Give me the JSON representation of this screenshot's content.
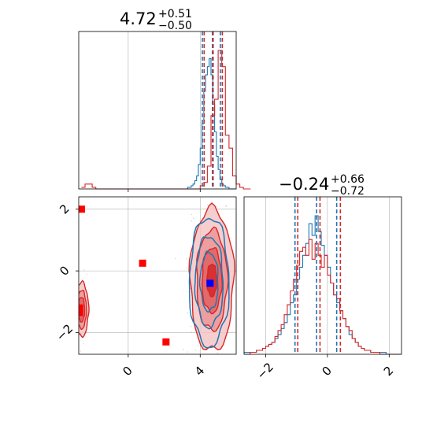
{
  "colors": {
    "blue": "#1f77b4",
    "red": "#d62728",
    "marker_blue": "#0000ff",
    "marker_red": "#ff0000",
    "grid": "#b0b0b0"
  },
  "chart_data": [
    {
      "type": "histogram",
      "panel": "top-left",
      "title": {
        "main": "4.72",
        "sup": "+0.51",
        "sub": "−0.50"
      },
      "xlim": [
        -2.75,
        6.0
      ],
      "grid": true,
      "quantiles": {
        "blue": [
          4.12,
          4.68,
          5.12
        ],
        "red": [
          4.22,
          4.72,
          5.23
        ]
      },
      "series": [
        {
          "color": "blue",
          "bins_from": 3.0,
          "bin_width": 0.1,
          "counts": [
            0,
            0,
            0,
            1,
            1,
            2,
            3,
            5,
            8,
            15,
            25,
            40,
            60,
            70,
            75,
            80,
            70,
            52,
            35,
            20,
            12,
            6,
            3,
            2,
            1,
            1,
            0,
            0,
            0,
            0
          ]
        },
        {
          "color": "red",
          "bins_from": -2.6,
          "bin_width": 0.2,
          "counts": [
            1,
            3,
            3,
            1,
            0,
            0,
            0,
            0,
            0,
            0,
            0,
            0,
            0,
            0,
            0,
            0,
            0,
            0,
            0,
            0,
            0,
            0,
            0,
            0,
            0,
            0,
            0,
            0,
            0,
            0,
            0,
            0,
            0,
            2,
            4,
            14,
            45,
            55,
            85,
            75,
            33,
            25,
            8,
            3,
            1,
            0,
            0
          ]
        }
      ]
    },
    {
      "type": "contour",
      "panel": "bottom-left",
      "xlim": [
        -2.75,
        6.0
      ],
      "ylim": [
        -2.7,
        2.4
      ],
      "xticks": [
        0,
        4
      ],
      "yticks": [
        -2,
        0,
        2
      ],
      "xtick_labels": [
        "0",
        "4"
      ],
      "ytick_labels": [
        "−2",
        "0",
        "2"
      ],
      "grid": true,
      "red_markers": [
        {
          "x": -2.6,
          "y": 2.0
        },
        {
          "x": 0.8,
          "y": 0.25
        },
        {
          "x": 2.1,
          "y": -2.3
        },
        {
          "x": -2.7,
          "y": -1.2
        },
        {
          "x": -2.7,
          "y": -1.35
        }
      ],
      "blue_markers": [
        {
          "x": 4.55,
          "y": -0.4
        }
      ],
      "red_clusters": [
        {
          "cx": 4.65,
          "cy": -0.3,
          "sx": 0.55,
          "sy": 1.05
        },
        {
          "cx": -2.6,
          "cy": -1.25,
          "sx": 0.18,
          "sy": 0.4
        }
      ],
      "blue_clusters": [
        {
          "cx": 4.5,
          "cy": -0.35,
          "sx": 0.5,
          "sy": 0.95
        }
      ]
    },
    {
      "type": "histogram",
      "panel": "bottom-right",
      "title": {
        "main": "−0.24",
        "sup": "+0.66",
        "sub": "−0.72"
      },
      "xlim": [
        -2.7,
        2.4
      ],
      "xticks": [
        -2,
        0,
        2
      ],
      "xtick_labels": [
        "−2",
        "0",
        "2"
      ],
      "grid": true,
      "quantiles": {
        "blue": [
          -1.05,
          -0.35,
          0.3
        ],
        "red": [
          -0.96,
          -0.24,
          0.42
        ]
      },
      "series": [
        {
          "color": "blue",
          "bins_from": -2.7,
          "bin_width": 0.1,
          "counts": [
            1,
            1,
            1,
            1,
            2,
            2,
            3,
            4,
            5,
            6,
            8,
            10,
            13,
            16,
            20,
            26,
            30,
            38,
            44,
            50,
            56,
            66,
            60,
            70,
            62,
            55,
            50,
            44,
            36,
            30,
            26,
            22,
            18,
            14,
            10,
            8,
            6,
            4,
            3,
            2,
            2,
            1,
            1,
            1,
            1,
            1,
            0,
            0,
            0,
            0,
            0
          ]
        },
        {
          "color": "red",
          "bins_from": -2.7,
          "bin_width": 0.1,
          "counts": [
            0,
            0,
            1,
            1,
            2,
            2,
            3,
            4,
            5,
            6,
            9,
            12,
            15,
            20,
            25,
            32,
            38,
            45,
            52,
            54,
            50,
            58,
            48,
            56,
            50,
            44,
            50,
            40,
            36,
            30,
            28,
            22,
            18,
            14,
            12,
            8,
            6,
            4,
            3,
            2,
            2,
            1,
            1,
            1,
            0,
            0,
            0,
            0,
            0,
            0,
            0
          ]
        }
      ]
    }
  ]
}
